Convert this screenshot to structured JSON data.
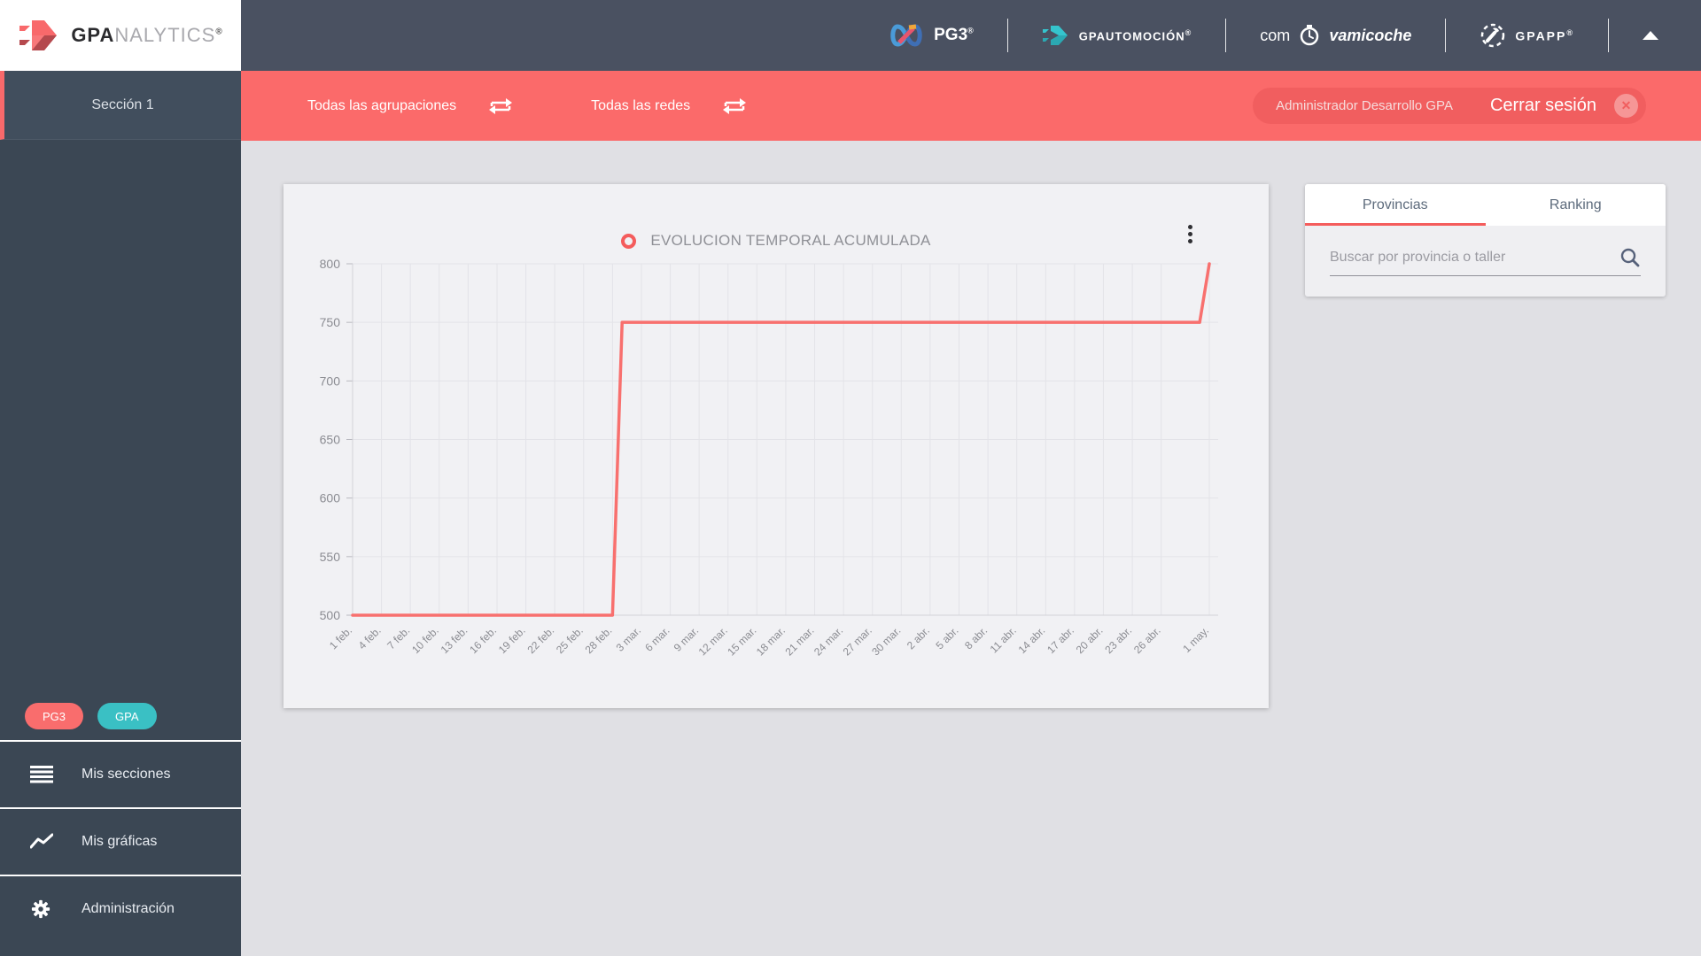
{
  "sidebar": {
    "logo": {
      "bold": "GPA",
      "light": "NALYTICS",
      "reg": "®"
    },
    "section": {
      "label": "Sección 1"
    },
    "badges": [
      {
        "label": "PG3",
        "color": "#f96d6d"
      },
      {
        "label": "GPA",
        "color": "#3ac0c4"
      }
    ],
    "menu": [
      {
        "label": "Mis secciones",
        "icon": "list-icon"
      },
      {
        "label": "Mis gráficas",
        "icon": "line-chart-icon"
      },
      {
        "label": "Administración",
        "icon": "gear-icon"
      }
    ]
  },
  "header": {
    "pg3": {
      "label": "PG3",
      "reg": "®"
    },
    "gpautomocion": {
      "label": "GPAUTOMOCIÓN",
      "reg": "®"
    },
    "compravamicoche": {
      "pre": "com",
      "post": "vamicoche"
    },
    "gpaapp": {
      "label": "GPAPP",
      "reg": "®"
    }
  },
  "filter_bar": {
    "agrupaciones": "Todas las agrupaciones",
    "redes": "Todas las redes",
    "user": "Administrador Desarrollo GPA",
    "logout": "Cerrar sesión"
  },
  "panel": {
    "tabs": [
      {
        "label": "Provincias",
        "active": true
      },
      {
        "label": "Ranking",
        "active": false
      }
    ],
    "search_placeholder": "Buscar por provincia o taller"
  },
  "chart_data": {
    "type": "line",
    "title": "EVOLUCION TEMPORAL ACUMULADA",
    "legend_position": "top",
    "grid": true,
    "xlabel": "",
    "ylabel": "",
    "ylim": [
      500,
      800
    ],
    "yticks": [
      500,
      550,
      600,
      650,
      700,
      750,
      800
    ],
    "x_tick_labels": [
      "1 feb.",
      "4 feb.",
      "7 feb.",
      "10 feb.",
      "13 feb.",
      "16 feb.",
      "19 feb.",
      "22 feb.",
      "25 feb.",
      "28 feb.",
      "3 mar.",
      "6 mar.",
      "9 mar.",
      "12 mar.",
      "15 mar.",
      "18 mar.",
      "21 mar.",
      "24 mar.",
      "27 mar.",
      "30 mar.",
      "2 abr.",
      "5 abr.",
      "8 abr.",
      "11 abr.",
      "14 abr.",
      "17 abr.",
      "20 abr.",
      "23 abr.",
      "26 abr.",
      "1 may."
    ],
    "x_tick_days": [
      0,
      3,
      6,
      9,
      12,
      15,
      18,
      21,
      24,
      27,
      30,
      33,
      36,
      39,
      42,
      45,
      48,
      51,
      54,
      57,
      60,
      63,
      66,
      69,
      72,
      75,
      78,
      81,
      84,
      89
    ],
    "series": [
      {
        "name": "EVOLUCION TEMPORAL ACUMULADA",
        "color": "#f8706e",
        "description": "Step line: 500 from 1 feb. to 28 feb., jumps to 750 on 1 mar., flat at 750 until 29 abr., rises to 800 on 1 may.",
        "breakpoints_day_value": [
          [
            0,
            500
          ],
          [
            27,
            500
          ],
          [
            28,
            750
          ],
          [
            88,
            750
          ],
          [
            89,
            800
          ]
        ]
      }
    ]
  },
  "colors": {
    "accent_red": "#fb6a6a",
    "legend_red": "#f45c5c",
    "header_bg": "#4a5161",
    "sidebar_bg": "#3b4754",
    "teal": "#3ac0c4",
    "card_bg": "#f1f1f4",
    "page_bg": "#e0e0e4"
  }
}
